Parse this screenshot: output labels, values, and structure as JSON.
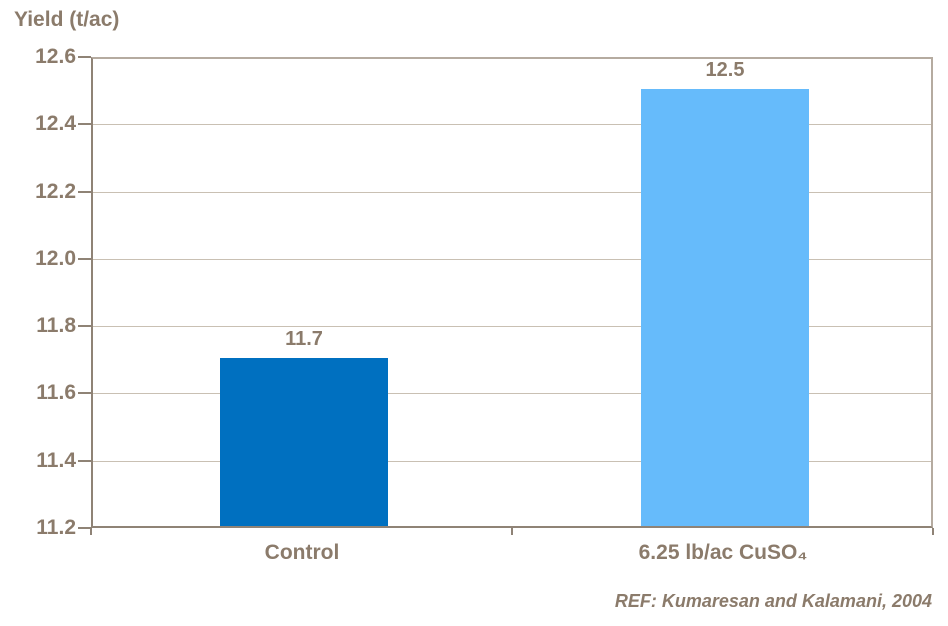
{
  "chart_data": {
    "type": "bar",
    "title": "Yield (t/ac)",
    "xlabel": "",
    "ylabel": "Yield (t/ac)",
    "categories": [
      "Control",
      "6.25 lb/ac CuSO₄"
    ],
    "values": [
      11.7,
      12.5
    ],
    "data_labels": [
      "11.7",
      "12.5"
    ],
    "bar_colors": [
      "#0070C0",
      "#66BBFB"
    ],
    "ylim": [
      11.2,
      12.6
    ],
    "yticks": [
      "12.6",
      "12.4",
      "12.2",
      "12.0",
      "11.8",
      "11.6",
      "11.4",
      "11.2"
    ],
    "grid": true,
    "legend": "none",
    "reference": "REF: Kumaresan and Kalamani, 2004"
  },
  "colors": {
    "text": "#8B7B6B",
    "gridline": "#C9C0B3",
    "border_light": "#B5ABA0",
    "axis_dark": "#8F8376",
    "background": "#FFFFFF"
  }
}
